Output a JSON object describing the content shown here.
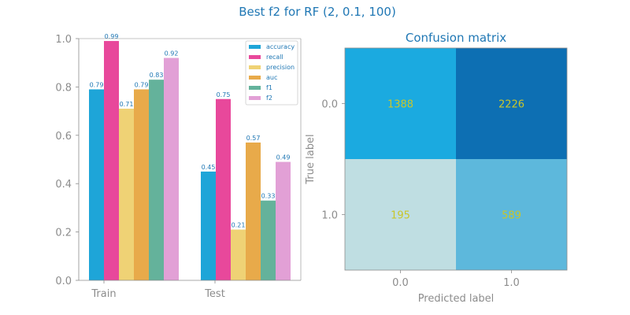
{
  "figure": {
    "suptitle": "Best f2 for RF (2, 0.1, 100)"
  },
  "chart_data": [
    {
      "type": "bar",
      "title": "",
      "xlabel": "",
      "ylabel": "",
      "categories": [
        "Train",
        "Test"
      ],
      "ylim": [
        0,
        1.0
      ],
      "yticks": [
        "0.0",
        "0.2",
        "0.4",
        "0.6",
        "0.8",
        "1.0"
      ],
      "grid": false,
      "legend_position": "top-right",
      "series": [
        {
          "name": "accuracy",
          "color": "#1ea5d8",
          "values": [
            0.79,
            0.45
          ],
          "labels": [
            "0.79",
            "0.45"
          ]
        },
        {
          "name": "recall",
          "color": "#e8489b",
          "values": [
            0.99,
            0.75
          ],
          "labels": [
            "0.99",
            "0.75"
          ]
        },
        {
          "name": "precision",
          "color": "#efd275",
          "values": [
            0.71,
            0.21
          ],
          "labels": [
            "0.71",
            "0.21"
          ]
        },
        {
          "name": "auc",
          "color": "#e8aa4a",
          "values": [
            0.79,
            0.57
          ],
          "labels": [
            "0.79",
            "0.57"
          ]
        },
        {
          "name": "f1",
          "color": "#64b29b",
          "values": [
            0.83,
            0.33
          ],
          "labels": [
            "0.83",
            "0.33"
          ]
        },
        {
          "name": "f2",
          "color": "#e2a0d6",
          "values": [
            0.92,
            0.49
          ],
          "labels": [
            "0.92",
            "0.49"
          ]
        }
      ]
    },
    {
      "type": "heatmap",
      "title": "Confusion matrix",
      "xlabel": "Predicted label",
      "ylabel": "True label",
      "x_categories": [
        "0.0",
        "1.0"
      ],
      "y_categories": [
        "0.0",
        "1.0"
      ],
      "values": [
        [
          1388,
          2226
        ],
        [
          195,
          589
        ]
      ],
      "labels": [
        [
          "1388",
          "2226"
        ],
        [
          "195",
          "589"
        ]
      ],
      "cell_colors": [
        [
          "#1baae0",
          "#0d6fb3"
        ],
        [
          "#bfdee2",
          "#5db8dc"
        ]
      ]
    }
  ]
}
